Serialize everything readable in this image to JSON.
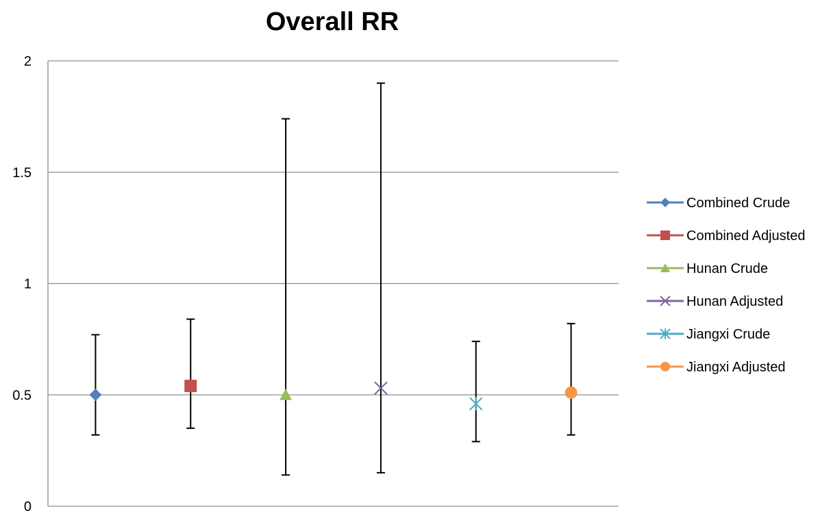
{
  "chart_data": {
    "type": "scatter",
    "title": "Overall RR",
    "xlabel": "",
    "ylabel": "",
    "ylim": [
      0,
      2
    ],
    "yticks": [
      0,
      0.5,
      1,
      1.5,
      2
    ],
    "ytick_labels": [
      "0",
      "0.5",
      "1",
      "1.5",
      "2"
    ],
    "grid": "horizontal",
    "legend_position": "right",
    "error_bar_color": "#000000",
    "series": [
      {
        "name": "Combined Crude",
        "value": 0.5,
        "lower": 0.32,
        "upper": 0.77,
        "marker": "diamond",
        "color": "#4F81BD"
      },
      {
        "name": "Combined Adjusted",
        "value": 0.54,
        "lower": 0.35,
        "upper": 0.84,
        "marker": "square",
        "color": "#C0504D"
      },
      {
        "name": "Hunan Crude",
        "value": 0.5,
        "lower": 0.14,
        "upper": 1.74,
        "marker": "triangle",
        "color": "#9BBB59"
      },
      {
        "name": "Hunan Adjusted",
        "value": 0.53,
        "lower": 0.15,
        "upper": 1.9,
        "marker": "x",
        "color": "#8064A2"
      },
      {
        "name": "Jiangxi Crude",
        "value": 0.46,
        "lower": 0.29,
        "upper": 0.74,
        "marker": "star",
        "color": "#4BACC6"
      },
      {
        "name": "Jiangxi Adjusted",
        "value": 0.51,
        "lower": 0.32,
        "upper": 0.82,
        "marker": "circle",
        "color": "#F79646"
      }
    ]
  }
}
